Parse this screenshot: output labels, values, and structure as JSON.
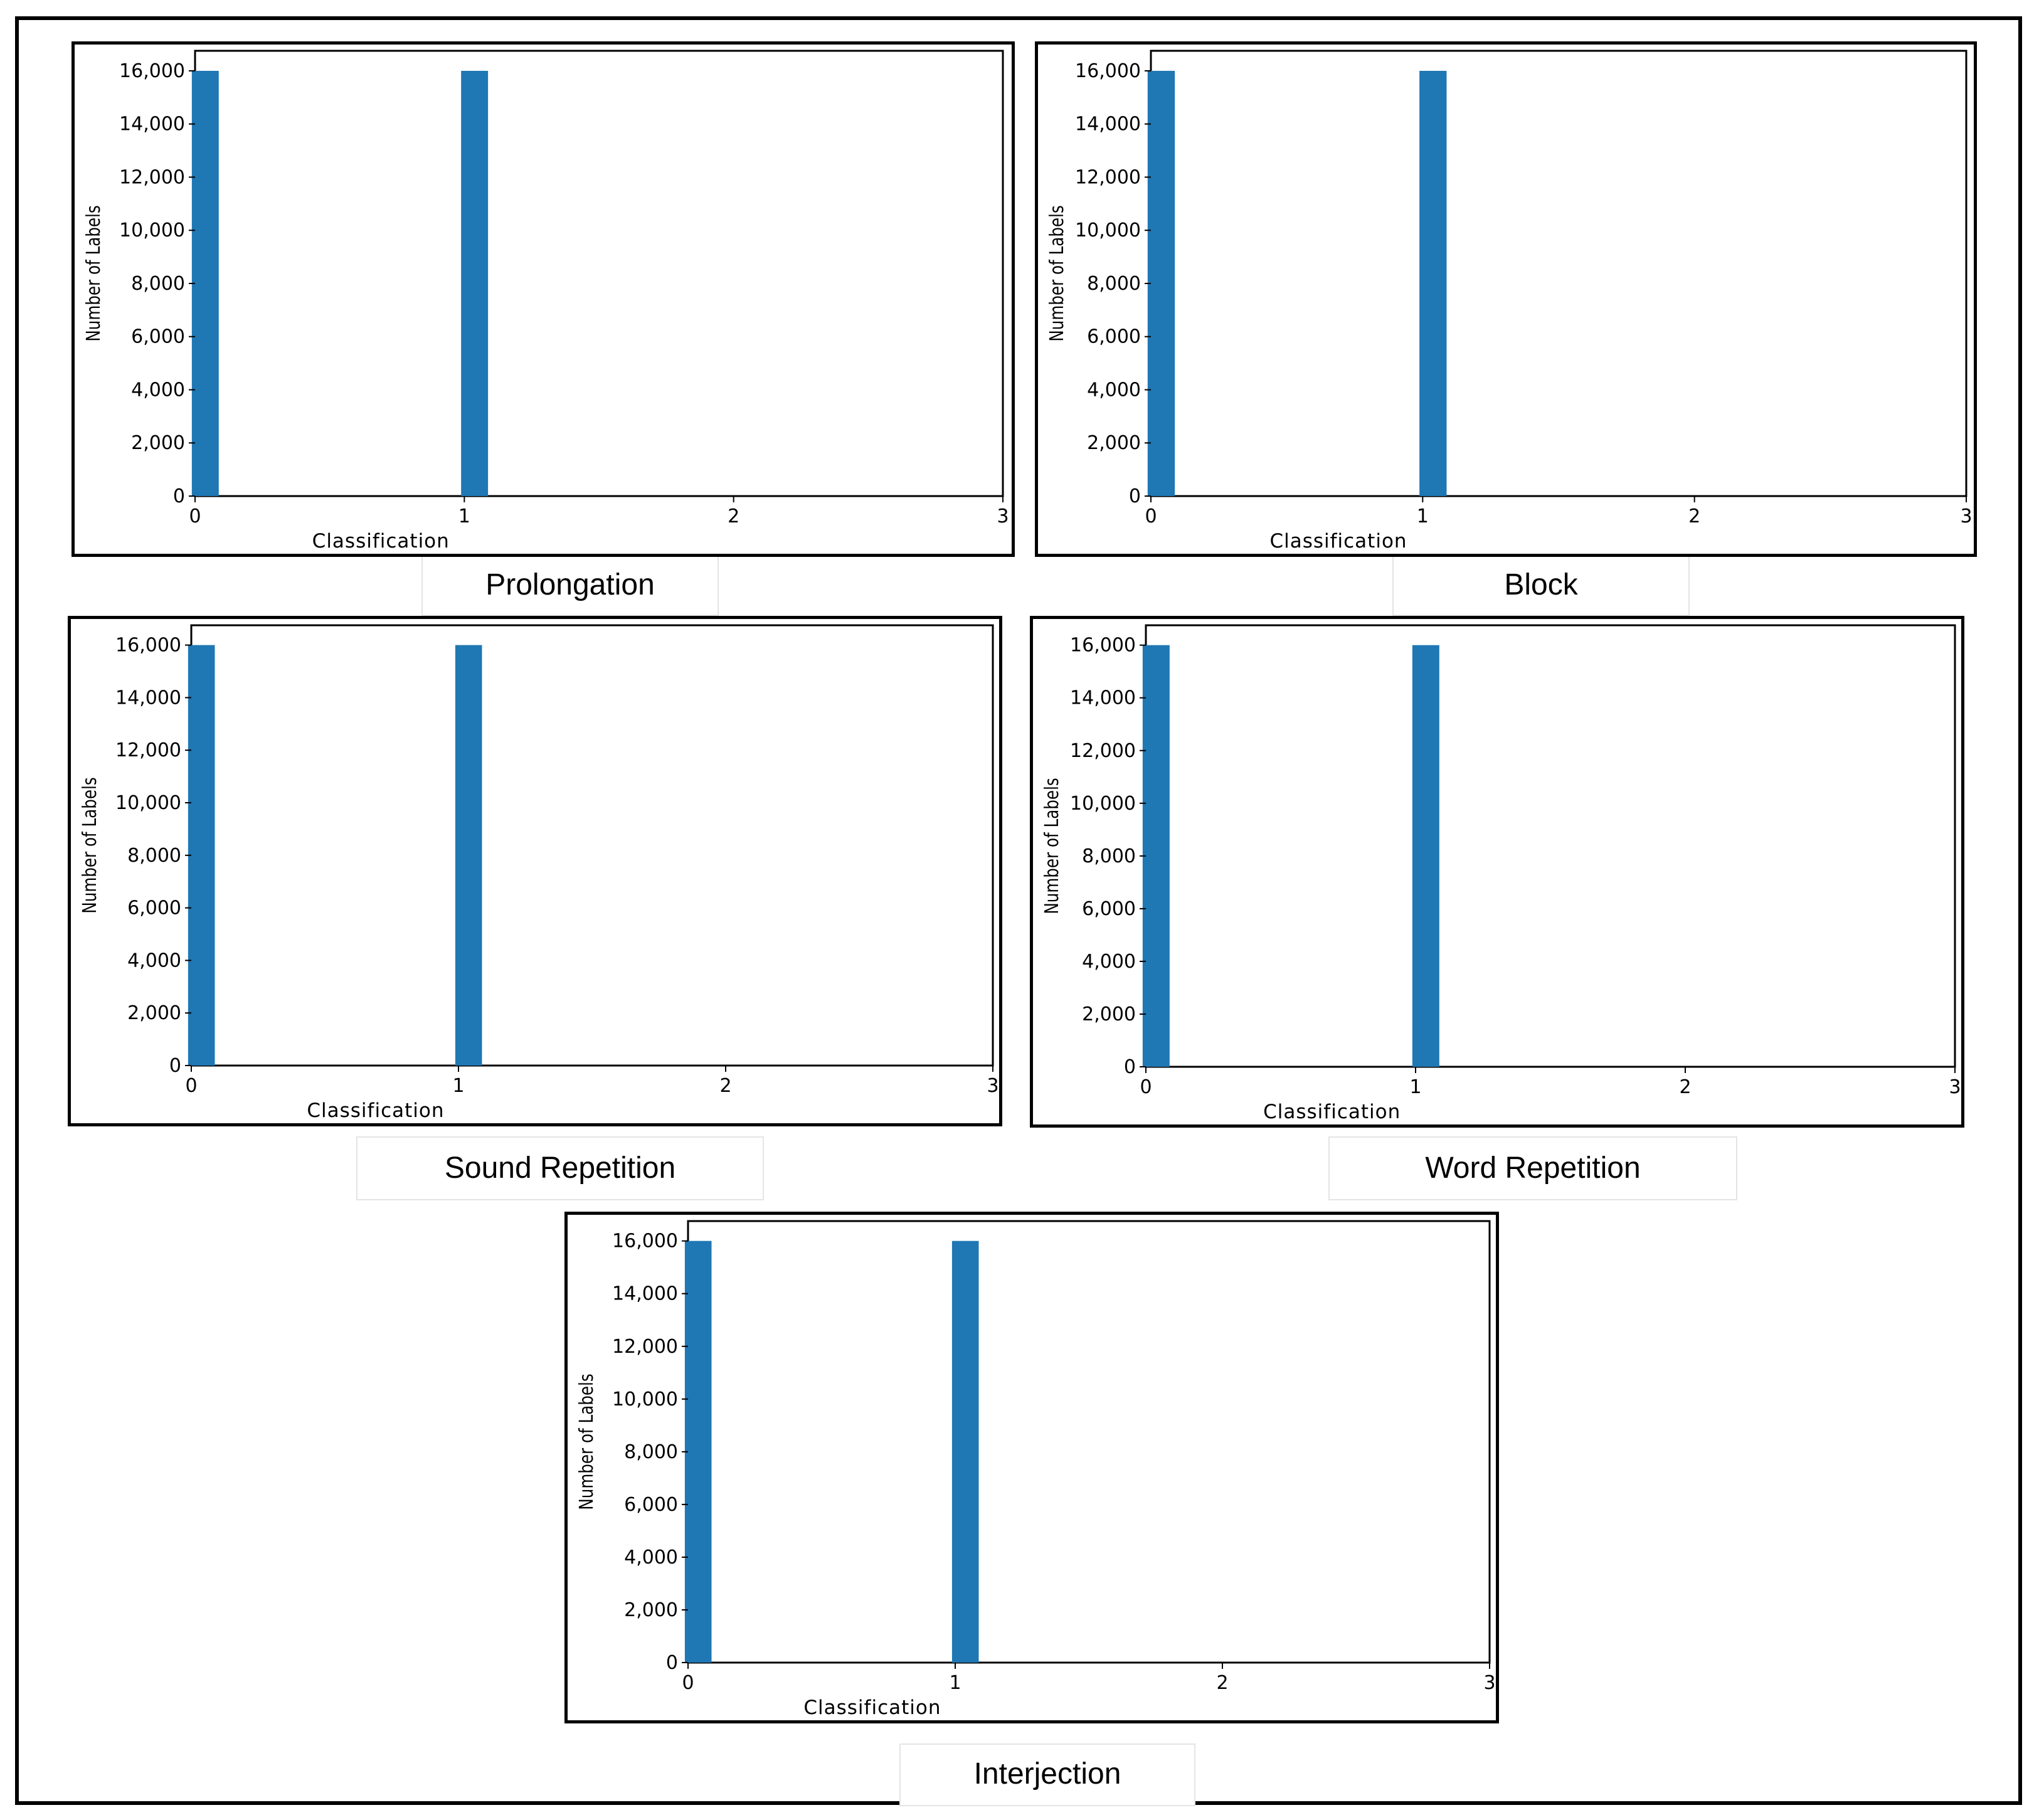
{
  "figure": {
    "colors": {
      "bar": "#1f77b4",
      "frame": "#000000",
      "axes": "#000000"
    }
  },
  "chart_data": [
    {
      "type": "bar",
      "caption": "Prolongation",
      "xlabel": "Classification",
      "ylabel": "Number of Labels",
      "xlim": [
        0,
        3
      ],
      "ylim": [
        0,
        16000
      ],
      "x_ticks": [
        "0",
        "1",
        "2",
        "3"
      ],
      "y_ticks": [
        "0",
        "2,000",
        "4,000",
        "6,000",
        "8,000",
        "10,000",
        "12,000",
        "14,000",
        "16,000"
      ],
      "bars": [
        {
          "x": 0,
          "value": 16000
        },
        {
          "x": 1,
          "value": 16000
        }
      ],
      "grid": false,
      "legend": "none"
    },
    {
      "type": "bar",
      "caption": "Block",
      "xlabel": "Classification",
      "ylabel": "Number of Labels",
      "xlim": [
        0,
        3
      ],
      "ylim": [
        0,
        16000
      ],
      "x_ticks": [
        "0",
        "1",
        "2",
        "3"
      ],
      "y_ticks": [
        "0",
        "2,000",
        "4,000",
        "6,000",
        "8,000",
        "10,000",
        "12,000",
        "14,000",
        "16,000"
      ],
      "bars": [
        {
          "x": 0,
          "value": 16000
        },
        {
          "x": 1,
          "value": 16000
        }
      ],
      "grid": false,
      "legend": "none"
    },
    {
      "type": "bar",
      "caption": "Sound Repetition",
      "xlabel": "Classification",
      "ylabel": "Number of Labels",
      "xlim": [
        0,
        3
      ],
      "ylim": [
        0,
        16000
      ],
      "x_ticks": [
        "0",
        "1",
        "2",
        "3"
      ],
      "y_ticks": [
        "0",
        "2,000",
        "4,000",
        "6,000",
        "8,000",
        "10,000",
        "12,000",
        "14,000",
        "16,000"
      ],
      "bars": [
        {
          "x": 0,
          "value": 16000
        },
        {
          "x": 1,
          "value": 16000
        }
      ],
      "grid": false,
      "legend": "none"
    },
    {
      "type": "bar",
      "caption": "Word Repetition",
      "xlabel": "Classification",
      "ylabel": "Number of Labels",
      "xlim": [
        0,
        3
      ],
      "ylim": [
        0,
        16000
      ],
      "x_ticks": [
        "0",
        "1",
        "2",
        "3"
      ],
      "y_ticks": [
        "0",
        "2,000",
        "4,000",
        "6,000",
        "8,000",
        "10,000",
        "12,000",
        "14,000",
        "16,000"
      ],
      "bars": [
        {
          "x": 0,
          "value": 16000
        },
        {
          "x": 1,
          "value": 16000
        }
      ],
      "grid": false,
      "legend": "none"
    },
    {
      "type": "bar",
      "caption": "Interjection",
      "xlabel": "Classification",
      "ylabel": "Number of Labels",
      "xlim": [
        0,
        3
      ],
      "ylim": [
        0,
        16000
      ],
      "x_ticks": [
        "0",
        "1",
        "2",
        "3"
      ],
      "y_ticks": [
        "0",
        "2,000",
        "4,000",
        "6,000",
        "8,000",
        "10,000",
        "12,000",
        "14,000",
        "16,000"
      ],
      "bars": [
        {
          "x": 0,
          "value": 16000
        },
        {
          "x": 1,
          "value": 16000
        }
      ],
      "grid": false,
      "legend": "none"
    }
  ]
}
